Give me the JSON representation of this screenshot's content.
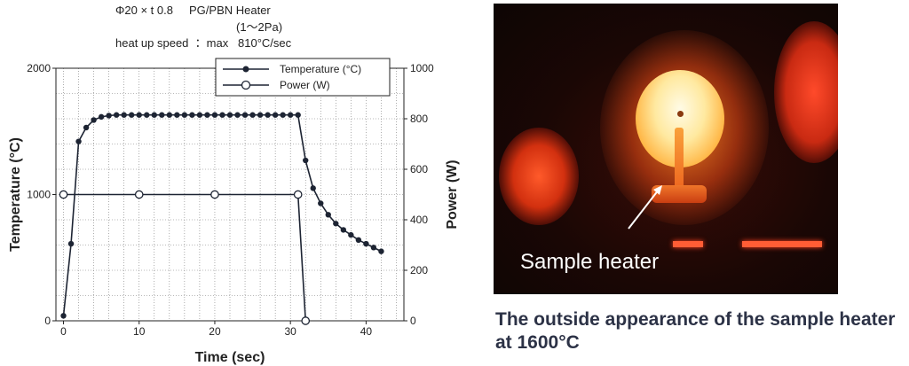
{
  "header": {
    "line1": "Φ20 × t 0.8     PG/PBN Heater",
    "line2": "(1〜2Pa)",
    "line3": "heat up speed  ：max   810°C/sec"
  },
  "chart_data": {
    "type": "line",
    "xlabel": "Time (sec)",
    "ylabel": "Temperature (°C)",
    "y2label": "Power (W)",
    "xlim": [
      -1,
      45
    ],
    "ylim": [
      0,
      2000
    ],
    "y2lim": [
      0,
      1000
    ],
    "xticks": [
      0,
      10,
      20,
      30,
      40
    ],
    "yticks": [
      0,
      1000,
      2000
    ],
    "y2ticks": [
      0,
      200,
      400,
      600,
      800,
      1000
    ],
    "grid": true,
    "legend_position": "top-right",
    "series": [
      {
        "name": "Temperature (°C)",
        "axis": "left",
        "marker": "filled",
        "x": [
          0,
          1,
          2,
          3,
          4,
          5,
          6,
          7,
          8,
          9,
          10,
          11,
          12,
          13,
          14,
          15,
          16,
          17,
          18,
          19,
          20,
          21,
          22,
          23,
          24,
          25,
          26,
          27,
          28,
          29,
          30,
          31,
          32,
          33,
          34,
          35,
          36,
          37,
          38,
          39,
          40,
          41,
          42
        ],
        "values": [
          40,
          610,
          1420,
          1530,
          1590,
          1615,
          1625,
          1630,
          1630,
          1630,
          1630,
          1630,
          1630,
          1630,
          1630,
          1630,
          1630,
          1630,
          1630,
          1630,
          1630,
          1630,
          1630,
          1630,
          1630,
          1630,
          1630,
          1630,
          1630,
          1630,
          1630,
          1630,
          1270,
          1050,
          930,
          840,
          770,
          720,
          680,
          640,
          610,
          580,
          550
        ]
      },
      {
        "name": "Power (W)",
        "axis": "right",
        "marker": "open",
        "x": [
          0,
          1,
          10,
          20,
          31,
          32
        ],
        "values": [
          500,
          500,
          500,
          500,
          500,
          0
        ],
        "marked_x": [
          0,
          10,
          20,
          31,
          32
        ]
      }
    ]
  },
  "photo": {
    "label": "Sample heater"
  },
  "caption": "The outside appearance of the sample heater at 1600°C",
  "colors": {
    "series": "#1d2433",
    "grid": "#777777",
    "caption": "#2c3246"
  }
}
